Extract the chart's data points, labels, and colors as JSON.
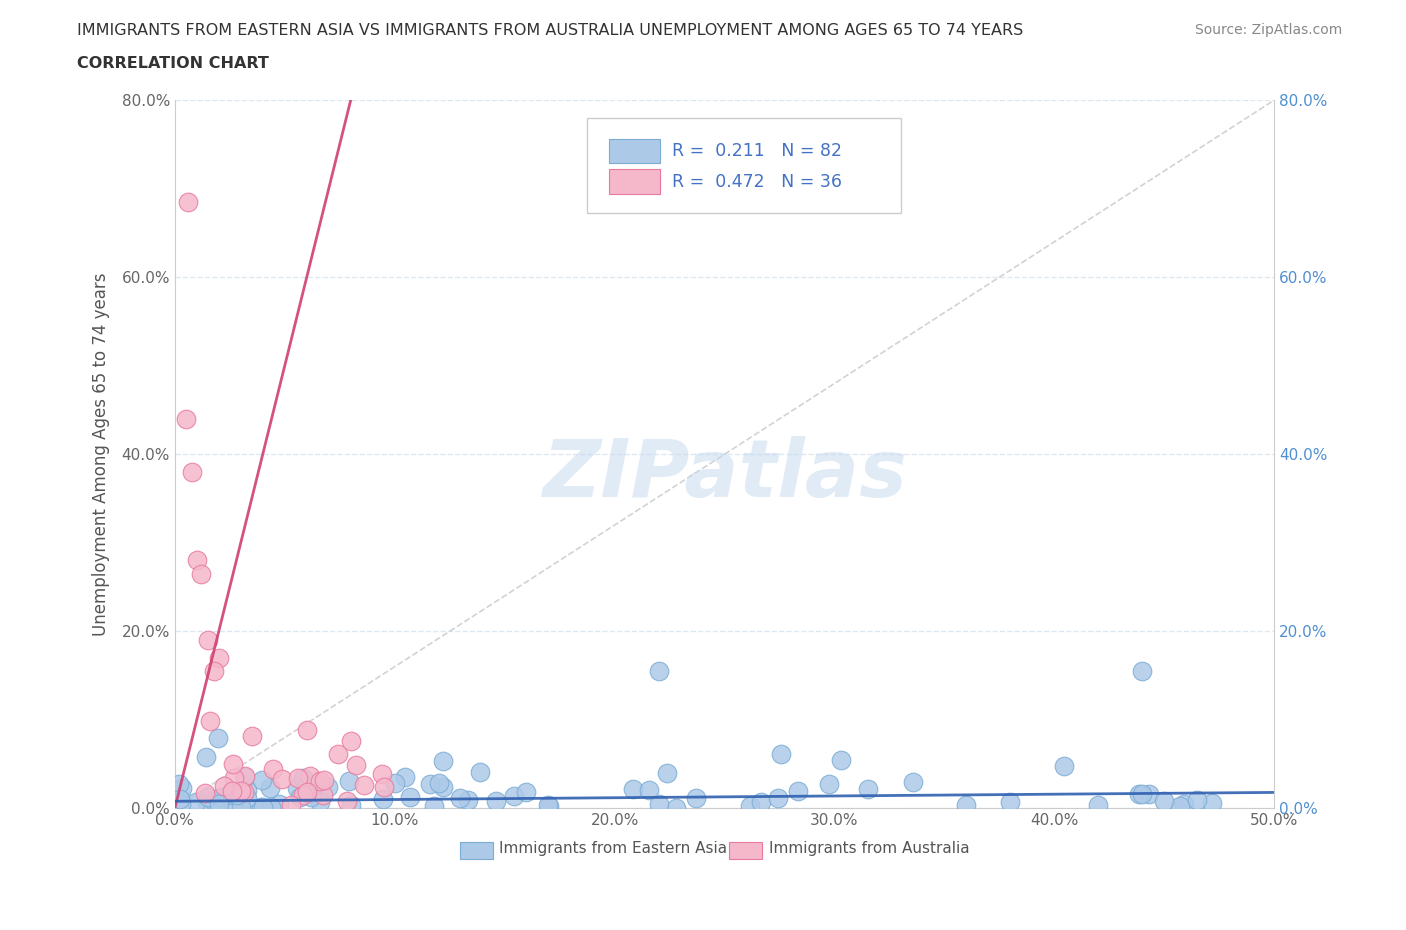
{
  "title_line1": "IMMIGRANTS FROM EASTERN ASIA VS IMMIGRANTS FROM AUSTRALIA UNEMPLOYMENT AMONG AGES 65 TO 74 YEARS",
  "title_line2": "CORRELATION CHART",
  "source_text": "Source: ZipAtlas.com",
  "ylabel": "Unemployment Among Ages 65 to 74 years",
  "xlim": [
    0.0,
    0.5
  ],
  "ylim": [
    0.0,
    0.8
  ],
  "xticks": [
    0.0,
    0.1,
    0.2,
    0.3,
    0.4,
    0.5
  ],
  "yticks": [
    0.0,
    0.2,
    0.4,
    0.6,
    0.8
  ],
  "xtick_labels": [
    "0.0%",
    "10.0%",
    "20.0%",
    "30.0%",
    "40.0%",
    "50.0%"
  ],
  "ytick_labels": [
    "0.0%",
    "20.0%",
    "40.0%",
    "60.0%",
    "80.0%"
  ],
  "series1_label": "Immigrants from Eastern Asia",
  "series1_color": "#adc9e8",
  "series1_edge": "#7aadd4",
  "series1_R": 0.211,
  "series1_N": 82,
  "series1_line_color": "#3060b0",
  "series2_label": "Immigrants from Australia",
  "series2_color": "#f5b8cb",
  "series2_edge": "#e87aa0",
  "series2_R": 0.472,
  "series2_N": 36,
  "series2_line_color": "#d04070",
  "watermark_color": "#c5d8ed",
  "background_color": "#ffffff",
  "grid_color": "#dde8f0",
  "right_tick_color": "#5090d0",
  "legend_color": "#4472c4"
}
